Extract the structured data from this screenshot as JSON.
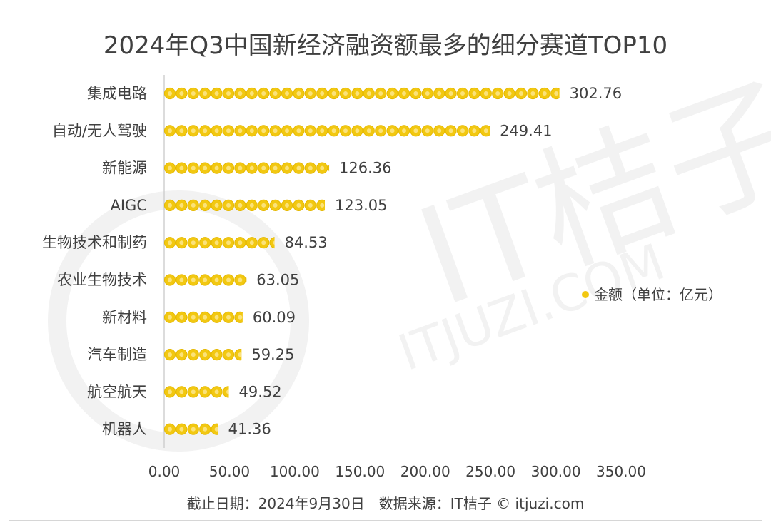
{
  "chart_data": {
    "type": "bar",
    "orientation": "horizontal",
    "title": "2024年Q3中国新经济融资额最多的细分赛道TOP10",
    "categories": [
      "集成电路",
      "自动/无人驾驶",
      "新能源",
      "AIGC",
      "生物技术和制药",
      "农业生物技术",
      "新材料",
      "汽车制造",
      "航空航天",
      "机器人"
    ],
    "series": [
      {
        "name": "金额（单位：亿元）",
        "values": [
          302.76,
          249.41,
          126.36,
          123.05,
          84.53,
          63.05,
          60.09,
          59.25,
          49.52,
          41.36
        ]
      }
    ],
    "value_labels": [
      "302.76",
      "249.41",
      "126.36",
      "123.05",
      "84.53",
      "63.05",
      "60.09",
      "59.25",
      "49.52",
      "41.36"
    ],
    "xlim": [
      0,
      350
    ],
    "xticks": [
      0,
      50,
      100,
      150,
      200,
      250,
      300,
      350
    ],
    "xtick_labels": [
      "0.00",
      "50.00",
      "100.00",
      "150.00",
      "200.00",
      "250.00",
      "300.00",
      "350.00"
    ],
    "legend_position": "right",
    "grid": false,
    "marker_color": "#F2C811",
    "marker_style": "coin-dots"
  },
  "footer": "截止日期：2024年9月30日　数据来源：IT桔子 © itjuzi.com",
  "watermark": {
    "main": "IT桔子",
    "sub": "ITJUZI.COM"
  }
}
